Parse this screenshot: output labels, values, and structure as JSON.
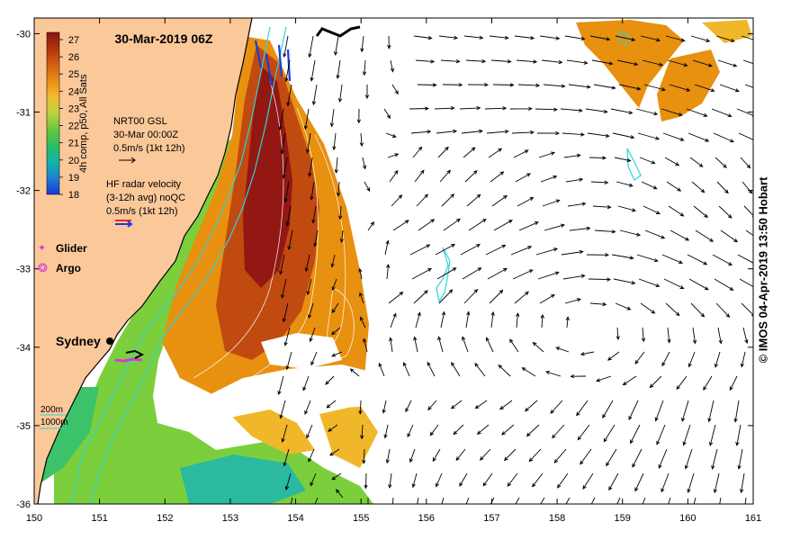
{
  "title": "30-Mar-2019 06Z",
  "colorbar": {
    "label": "4h comp, p50, All Sats",
    "ticks": [
      "27",
      "26",
      "25",
      "24",
      "23",
      "22",
      "21",
      "20",
      "19",
      "18"
    ],
    "colors": [
      "#9a1510",
      "#b8380c",
      "#d3620e",
      "#e78f17",
      "#f2b82a",
      "#cbd040",
      "#8ed13c",
      "#45c24d",
      "#12b8a0",
      "#1f7fd0",
      "#1c3fd8"
    ]
  },
  "legend": {
    "gsl": {
      "line1": "NRT00 GSL",
      "line2": "30-Mar 00:00Z",
      "line3": "0.5m/s (1kt 12h)"
    },
    "radar": {
      "line1": "HF radar velocity",
      "line2": "(3-12h avg) noQC",
      "line3": "0.5m/s (1kt 12h)"
    },
    "glider": "Glider",
    "argo": "Argo",
    "depth1": "200m",
    "depth2": "1000m"
  },
  "places": {
    "sydney": "Sydney"
  },
  "axes": {
    "x_ticks": [
      "150",
      "151",
      "152",
      "153",
      "154",
      "155",
      "156",
      "157",
      "158",
      "159",
      "160",
      "161"
    ],
    "y_ticks": [
      "-30",
      "-31",
      "-32",
      "-33",
      "-34",
      "-35",
      "-36"
    ],
    "x_range": [
      150,
      161
    ],
    "y_range": [
      -36,
      -29.8
    ]
  },
  "credit": "© IMOS 04-Apr-2019 13:50 Hobart",
  "colors": {
    "land": "#fbc89a",
    "contour": "#2fd4d4",
    "vector": "#000000",
    "glider": "#d63ad6"
  }
}
